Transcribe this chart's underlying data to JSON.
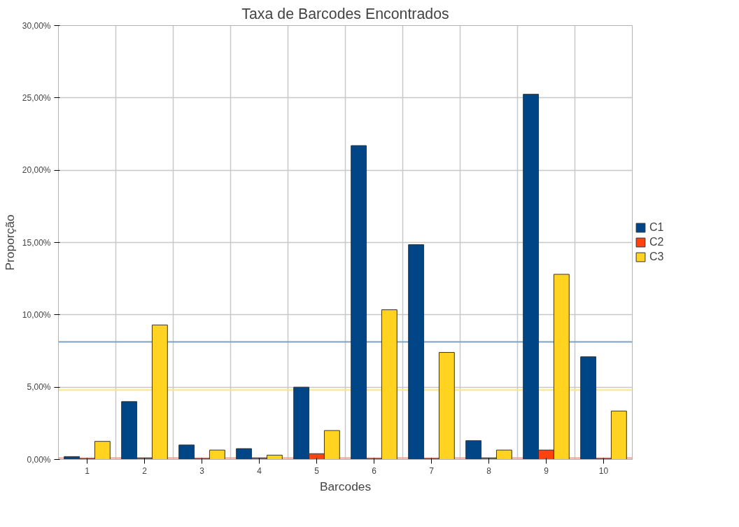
{
  "chart_data": {
    "type": "bar",
    "title": "Taxa de Barcodes Encontrados",
    "xlabel": "Barcodes",
    "ylabel": "Proporção",
    "categories": [
      "1",
      "2",
      "3",
      "4",
      "5",
      "6",
      "7",
      "8",
      "9",
      "10"
    ],
    "series": [
      {
        "name": "C1",
        "color": "#004586",
        "values": [
          0.2,
          4.0,
          1.0,
          0.75,
          5.0,
          21.7,
          14.85,
          1.3,
          25.25,
          7.1
        ]
      },
      {
        "name": "C2",
        "color": "#ff420e",
        "values": [
          0.05,
          0.1,
          0.05,
          0.1,
          0.4,
          0.05,
          0.05,
          0.1,
          0.65,
          0.05
        ]
      },
      {
        "name": "C3",
        "color": "#ffd320",
        "values": [
          1.25,
          9.3,
          0.65,
          0.3,
          2.0,
          10.35,
          7.4,
          0.65,
          12.8,
          3.35
        ]
      }
    ],
    "ylim": [
      0,
      30
    ],
    "yticks": [
      {
        "value": 0,
        "label": "0,00%"
      },
      {
        "value": 5,
        "label": "5,00%"
      },
      {
        "value": 10,
        "label": "10,00%"
      },
      {
        "value": 15,
        "label": "15,00%"
      },
      {
        "value": 20,
        "label": "20,00%"
      },
      {
        "value": 25,
        "label": "25,00%"
      },
      {
        "value": 30,
        "label": "30,00%"
      }
    ],
    "ref_lines": [
      {
        "axis": "y",
        "value": 8.13,
        "color": "#7f9fbf"
      },
      {
        "axis": "y",
        "value": 4.8,
        "color": "#ffe680"
      },
      {
        "axis": "y",
        "value": 0.1,
        "color": "#f0a090"
      }
    ],
    "grid": true,
    "legend": "right"
  }
}
